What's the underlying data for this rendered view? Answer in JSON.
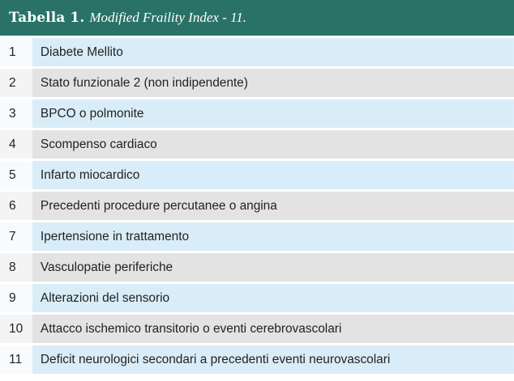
{
  "table": {
    "label": "Tabella 1.",
    "title": "Modified Fraility Index - 11.",
    "colors": {
      "header": "#2a7267",
      "row_light_text": "#d9edf8",
      "row_gray_text": "#e3e3e3"
    },
    "rows": [
      {
        "num": "1",
        "text": "Diabete Mellito"
      },
      {
        "num": "2",
        "text": "Stato funzionale 2 (non indipendente)"
      },
      {
        "num": "3",
        "text": "BPCO o polmonite"
      },
      {
        "num": "4",
        "text": "Scompenso cardiaco"
      },
      {
        "num": "5",
        "text": "Infarto miocardico"
      },
      {
        "num": "6",
        "text": "Precedenti procedure percutanee o angina"
      },
      {
        "num": "7",
        "text": "Ipertensione in trattamento"
      },
      {
        "num": "8",
        "text": "Vasculopatie periferiche"
      },
      {
        "num": "9",
        "text": "Alterazioni del sensorio"
      },
      {
        "num": "10",
        "text": "Attacco ischemico transitorio o eventi cerebrovascolari"
      },
      {
        "num": "11",
        "text": "Deficit neurologici secondari a precedenti eventi neurovascolari"
      }
    ]
  }
}
